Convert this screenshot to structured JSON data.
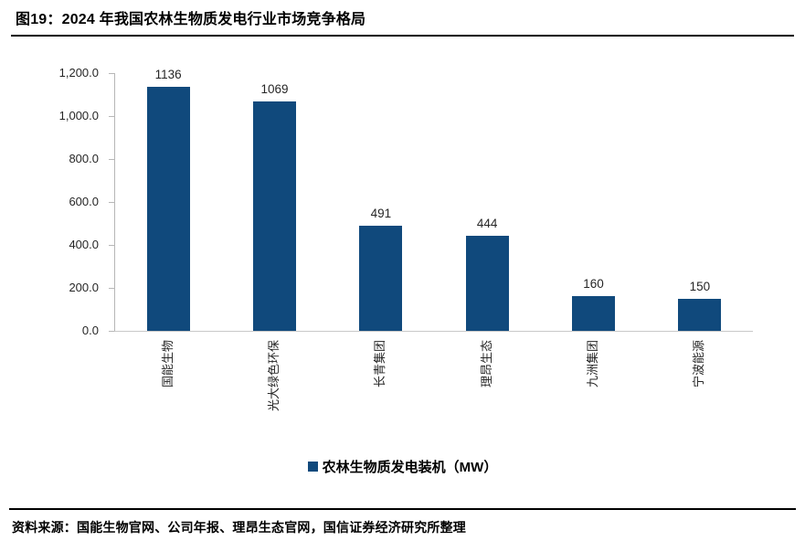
{
  "header": {
    "title": "图19：2024 年我国农林生物质发电行业市场竞争格局"
  },
  "chart_data": {
    "type": "bar",
    "title": "2024 年我国农林生物质发电行业市场竞争格局",
    "categories": [
      "国能生物",
      "光大绿色环保",
      "长青集团",
      "理昂生态",
      "九洲集团",
      "宁波能源"
    ],
    "values": [
      1136,
      1069,
      491,
      444,
      160,
      150
    ],
    "value_labels": [
      "1136",
      "1069",
      "491",
      "444",
      "160",
      "150"
    ],
    "series_name": "农林生物质发电装机（MW）",
    "legend": [
      "农林生物质发电装机（MW）"
    ],
    "legend_position": "bottom",
    "xlabel": "",
    "ylabel": "",
    "ylim": [
      0,
      1200
    ],
    "ytick_step": 200,
    "ytick_labels": [
      "0.0",
      "200.0",
      "400.0",
      "600.0",
      "800.0",
      "1,000.0",
      "1,200.0"
    ],
    "grid": false,
    "colors": {
      "bar": "#10497C",
      "axis": "#B7B7B7",
      "text": "#262626"
    }
  },
  "footer": {
    "source": "资料来源：国能生物官网、公司年报、理昂生态官网，国信证券经济研究所整理"
  }
}
